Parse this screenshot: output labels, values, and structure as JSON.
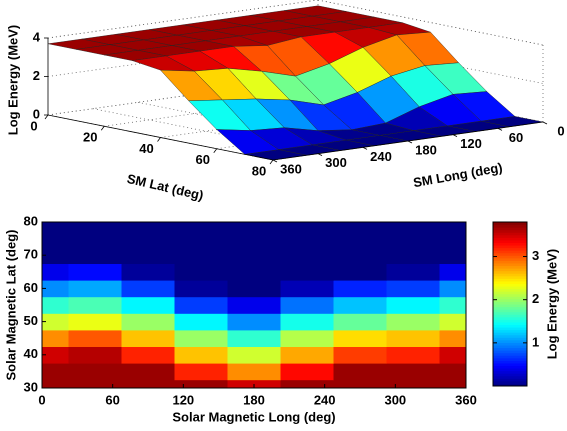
{
  "chart_data": [
    {
      "type": "surface",
      "zlabel": "Log Energy (MeV)",
      "xlabel": "SM Lat (deg)",
      "ylabel": "SM Long (deg)",
      "x": [
        0,
        10,
        20,
        30,
        40,
        50,
        60,
        70,
        80
      ],
      "y": [
        0,
        45,
        90,
        135,
        180,
        225,
        270,
        315,
        360
      ],
      "z": [
        [
          3.7,
          3.7,
          3.7,
          3.7,
          3.7,
          3.7,
          3.7,
          3.7,
          3.7
        ],
        [
          3.7,
          3.7,
          3.7,
          3.7,
          3.7,
          3.7,
          3.7,
          3.7,
          3.7
        ],
        [
          3.7,
          3.7,
          3.7,
          3.7,
          3.7,
          3.7,
          3.7,
          3.7,
          3.7
        ],
        [
          3.7,
          3.7,
          3.7,
          3.7,
          3.5,
          3.7,
          3.7,
          3.7,
          3.7
        ],
        [
          3.5,
          3.6,
          3.2,
          2.6,
          2.2,
          2.7,
          3.1,
          3.2,
          3.5
        ],
        [
          2.2,
          2.3,
          2.0,
          1.4,
          1.0,
          1.5,
          1.8,
          2.0,
          2.2
        ],
        [
          1.0,
          1.1,
          0.7,
          0.1,
          0,
          0.2,
          0.6,
          0.7,
          1.0
        ],
        [
          0,
          0,
          0,
          0,
          0,
          0,
          0,
          0,
          0
        ],
        [
          0,
          0,
          0,
          0,
          0,
          0,
          0,
          0,
          0
        ]
      ],
      "xlim": [
        0,
        80
      ],
      "ylim": [
        0,
        360
      ],
      "zlim": [
        0,
        4
      ],
      "xticks": [
        0,
        20,
        40,
        60,
        80
      ],
      "yticks": [
        0,
        60,
        120,
        180,
        240,
        300,
        360
      ],
      "zticks": [
        0,
        2,
        4
      ],
      "colormap": "jet",
      "clim": [
        0,
        3.8
      ],
      "grid": true
    },
    {
      "type": "contour",
      "xlabel": "Solar Magnetic Long (deg)",
      "ylabel": "Solar Magnetic Lat (deg)",
      "x": [
        0,
        45,
        90,
        135,
        180,
        225,
        270,
        315,
        360
      ],
      "y": [
        30,
        35,
        40,
        45,
        50,
        55,
        60,
        65,
        70,
        75,
        80
      ],
      "z": [
        [
          3.7,
          3.7,
          3.7,
          3.7,
          3.5,
          3.7,
          3.7,
          3.7,
          3.7
        ],
        [
          3.7,
          3.7,
          3.7,
          3.2,
          2.8,
          3.3,
          3.7,
          3.7,
          3.7
        ],
        [
          3.5,
          3.6,
          3.2,
          2.6,
          2.2,
          2.7,
          3.1,
          3.2,
          3.5
        ],
        [
          2.8,
          3.0,
          2.6,
          2.0,
          1.6,
          2.1,
          2.5,
          2.6,
          2.8
        ],
        [
          2.2,
          2.3,
          2.0,
          1.4,
          1.0,
          1.5,
          1.8,
          2.0,
          2.2
        ],
        [
          1.6,
          1.7,
          1.4,
          0.7,
          0.4,
          0.9,
          1.2,
          1.4,
          1.6
        ],
        [
          1.0,
          1.1,
          0.7,
          0.1,
          0,
          0.2,
          0.6,
          0.7,
          1.0
        ],
        [
          0.4,
          0.5,
          0.1,
          0,
          0,
          0,
          0,
          0.1,
          0.4
        ],
        [
          0,
          0,
          0,
          0,
          0,
          0,
          0,
          0,
          0
        ],
        [
          0,
          0,
          0,
          0,
          0,
          0,
          0,
          0,
          0
        ],
        [
          0,
          0,
          0,
          0,
          0,
          0,
          0,
          0,
          0
        ]
      ],
      "xlim": [
        0,
        360
      ],
      "ylim": [
        30,
        80
      ],
      "xticks": [
        0,
        60,
        120,
        180,
        240,
        300,
        360
      ],
      "yticks": [
        30,
        40,
        50,
        60,
        70,
        80
      ],
      "colormap": "jet",
      "colorbar": {
        "label": "Log Energy (MeV)",
        "lim": [
          0,
          3.8
        ],
        "ticks": [
          1,
          2,
          3
        ]
      }
    }
  ]
}
